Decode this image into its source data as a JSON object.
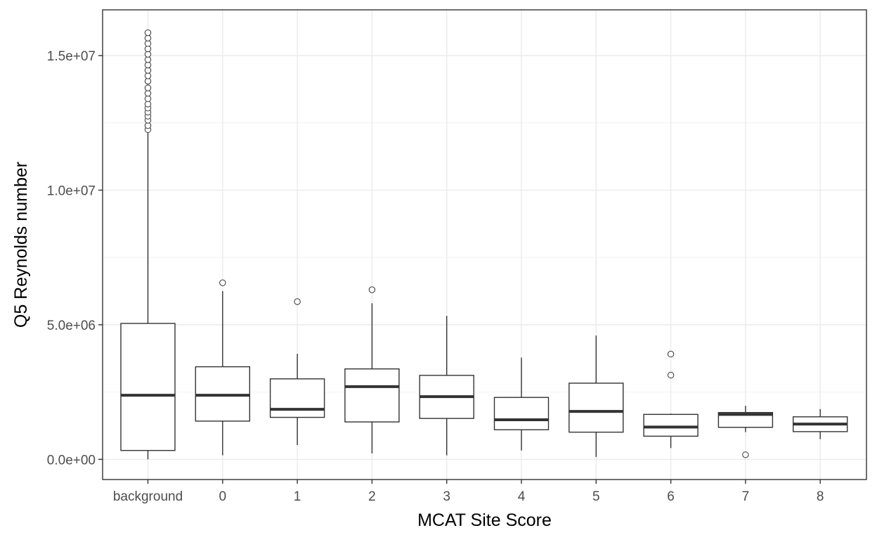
{
  "chart_data": {
    "type": "boxplot",
    "xlabel": "MCAT Site Score",
    "ylabel": "Q5 Reynolds number",
    "ylim": [
      -750000,
      16700000
    ],
    "yticks": [
      0,
      5000000,
      10000000,
      15000000
    ],
    "ytick_labels": [
      "0.0e+00",
      "5.0e+06",
      "1.0e+07",
      "1.5e+07"
    ],
    "grid": true,
    "categories": [
      "background",
      "0",
      "1",
      "2",
      "3",
      "4",
      "5",
      "6",
      "7",
      "8"
    ],
    "boxes": [
      {
        "category": "background",
        "min": 0,
        "q1": 330000,
        "median": 2380000,
        "q3": 5050000,
        "max": 12200000,
        "outliers": [
          12250000,
          12400000,
          12600000,
          12750000,
          12900000,
          13050000,
          13200000,
          13400000,
          13600000,
          13800000,
          14050000,
          14250000,
          14450000,
          14650000,
          14850000,
          15050000,
          15250000,
          15450000,
          15650000,
          15850000
        ]
      },
      {
        "category": "0",
        "min": 150000,
        "q1": 1420000,
        "median": 2380000,
        "q3": 3440000,
        "max": 6250000,
        "outliers": [
          6560000
        ]
      },
      {
        "category": "1",
        "min": 530000,
        "q1": 1560000,
        "median": 1860000,
        "q3": 2990000,
        "max": 3920000,
        "outliers": [
          5860000
        ]
      },
      {
        "category": "2",
        "min": 220000,
        "q1": 1390000,
        "median": 2700000,
        "q3": 3360000,
        "max": 5800000,
        "outliers": [
          6300000
        ]
      },
      {
        "category": "3",
        "min": 150000,
        "q1": 1520000,
        "median": 2330000,
        "q3": 3120000,
        "max": 5330000,
        "outliers": []
      },
      {
        "category": "4",
        "min": 330000,
        "q1": 1100000,
        "median": 1470000,
        "q3": 2300000,
        "max": 3780000,
        "outliers": []
      },
      {
        "category": "5",
        "min": 90000,
        "q1": 1010000,
        "median": 1780000,
        "q3": 2830000,
        "max": 4600000,
        "outliers": []
      },
      {
        "category": "6",
        "min": 420000,
        "q1": 860000,
        "median": 1200000,
        "q3": 1670000,
        "max": 1700000,
        "outliers": [
          3130000,
          3910000
        ]
      },
      {
        "category": "7",
        "min": 1010000,
        "q1": 1190000,
        "median": 1670000,
        "q3": 1740000,
        "max": 1990000,
        "outliers": [
          170000
        ]
      },
      {
        "category": "8",
        "min": 750000,
        "q1": 1030000,
        "median": 1310000,
        "q3": 1580000,
        "max": 1870000,
        "outliers": []
      }
    ]
  }
}
